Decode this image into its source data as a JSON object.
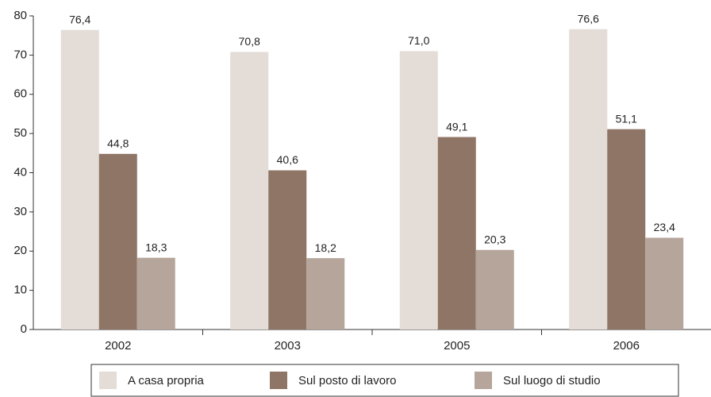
{
  "chart_data": {
    "type": "bar",
    "categories": [
      "2002",
      "2003",
      "2005",
      "2006"
    ],
    "series": [
      {
        "name": "A casa propria",
        "color": "#e4dcd6",
        "values": [
          76.4,
          70.8,
          71.0,
          76.6
        ],
        "value_labels": [
          "76,4",
          "70,8",
          "71,0",
          "76,6"
        ]
      },
      {
        "name": "Sul posto di lavoro",
        "color": "#8e7565",
        "values": [
          44.8,
          40.6,
          49.1,
          51.1
        ],
        "value_labels": [
          "44,8",
          "40,6",
          "49,1",
          "51,1"
        ]
      },
      {
        "name": "Sul luogo di studio",
        "color": "#b6a59a",
        "values": [
          18.3,
          18.2,
          20.3,
          23.4
        ],
        "value_labels": [
          "18,3",
          "18,2",
          "20,3",
          "23,4"
        ]
      }
    ],
    "ylim": [
      0,
      80
    ],
    "yticks": [
      0,
      10,
      20,
      30,
      40,
      50,
      60,
      70,
      80
    ],
    "grid": false,
    "legend": "bottom"
  }
}
